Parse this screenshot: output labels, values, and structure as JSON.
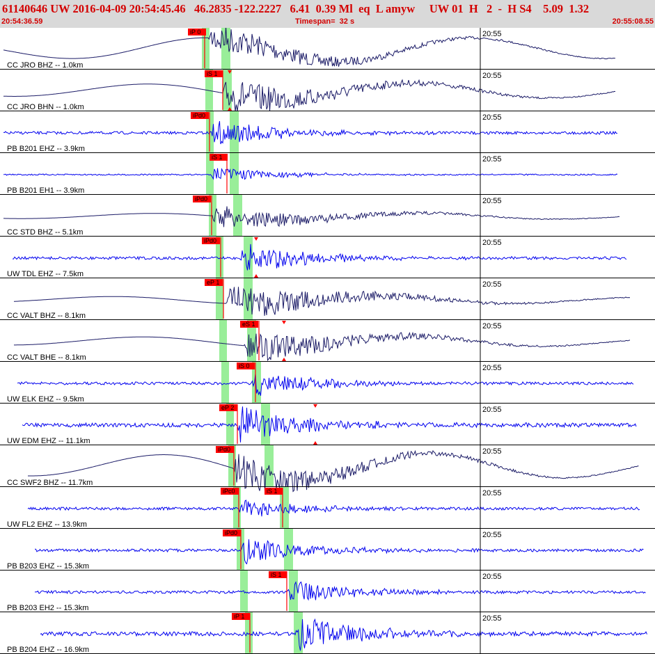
{
  "header": {
    "title": "61140646 UW 2016-04-09 20:54:45.46   46.2835 -122.2227   6.41  0.39 Ml  eq  L amyw     UW 01  H   2  -  H S4    5.09  1.32",
    "start_time": "20:54:36.59",
    "timespan": "Timespan=  32 s",
    "end_time": "20:55:08.55"
  },
  "colors": {
    "header_bg": "#d9d9d9",
    "header_text": "#d40000",
    "pick_flag": "#ff0000",
    "pick_window": "#99ee99",
    "trace_broadband": "#1a1a66",
    "trace_shortperiod": "#0000ee",
    "separator": "#000000"
  },
  "chart_data": {
    "type": "line",
    "x_range": [
      "20:54:36.59",
      "20:55:08.55"
    ],
    "time_marker": "20:55",
    "panels": [
      {
        "label": "CC JRO BHZ -- 1.0km",
        "trace": "broadband",
        "picks": [
          {
            "text": "iP 0"
          }
        ]
      },
      {
        "label": "CC JRO BHN -- 1.0km",
        "trace": "broadband",
        "picks": [
          {
            "text": "iS 1"
          }
        ]
      },
      {
        "label": "PB B201 EHZ -- 3.9km",
        "trace": "shortperiod",
        "picks": [
          {
            "text": "iPd0"
          }
        ]
      },
      {
        "label": "PB B201 EH1 -- 3.9km",
        "trace": "shortperiod",
        "picks": [
          {
            "text": "iS 1"
          }
        ]
      },
      {
        "label": "CC STD BHZ -- 5.1km",
        "trace": "broadband",
        "picks": [
          {
            "text": "iPd0"
          }
        ]
      },
      {
        "label": "UW TDL EHZ -- 7.5km",
        "trace": "shortperiod",
        "picks": [
          {
            "text": "iPd0"
          }
        ]
      },
      {
        "label": "CC VALT BHZ -- 8.1km",
        "trace": "broadband",
        "picks": [
          {
            "text": "eP 1"
          }
        ]
      },
      {
        "label": "CC VALT BHE -- 8.1km",
        "trace": "broadband",
        "picks": [
          {
            "text": "eS 1"
          }
        ]
      },
      {
        "label": "UW ELK EHZ -- 9.5km",
        "trace": "shortperiod",
        "picks": [
          {
            "text": "iS 0"
          }
        ]
      },
      {
        "label": "UW EDM EHZ -- 11.1km",
        "trace": "shortperiod",
        "picks": [
          {
            "text": "eP 2"
          }
        ]
      },
      {
        "label": "CC SWF2 BHZ -- 11.7km",
        "trace": "broadband",
        "picks": [
          {
            "text": "iPd0"
          }
        ]
      },
      {
        "label": "UW FL2 EHZ -- 13.9km",
        "trace": "shortperiod",
        "picks": [
          {
            "text": "iPc0"
          },
          {
            "text": "iS 1"
          }
        ]
      },
      {
        "label": "PB B203 EHZ -- 15.3km",
        "trace": "shortperiod",
        "picks": [
          {
            "text": "iPd0"
          }
        ]
      },
      {
        "label": "PB B203 EH2 -- 15.3km",
        "trace": "shortperiod",
        "picks": [
          {
            "text": "iS 1"
          }
        ]
      },
      {
        "label": "PB B204 EHZ -- 16.9km",
        "trace": "shortperiod",
        "picks": [
          {
            "text": "iP 1"
          }
        ]
      }
    ]
  }
}
